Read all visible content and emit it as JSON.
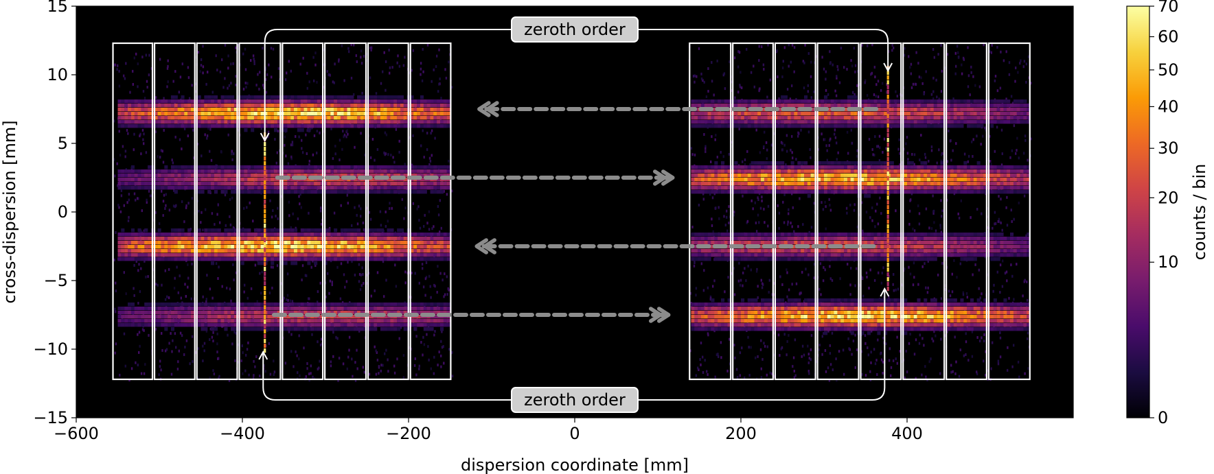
{
  "chart_data": {
    "type": "heatmap",
    "xlabel": "dispersion coordinate [mm]",
    "ylabel": "cross-dispersion [mm]",
    "xlim": [
      -600,
      600
    ],
    "ylim": [
      -15,
      15
    ],
    "xticks": [
      -600,
      -400,
      -200,
      0,
      200,
      400
    ],
    "yticks": [
      -15,
      -10,
      -5,
      0,
      5,
      10,
      15
    ],
    "xtick_labels": [
      "−600",
      "−400",
      "−200",
      "0",
      "200",
      "400"
    ],
    "ytick_labels": [
      "−15",
      "−10",
      "−5",
      "0",
      "5",
      "10",
      "15"
    ],
    "colorbar": {
      "label": "counts / bin",
      "range": [
        0,
        70
      ],
      "scale": "nonlinear",
      "ticks": [
        0,
        10,
        20,
        30,
        40,
        50,
        60,
        70
      ],
      "tick_labels": [
        "0",
        "10",
        "20",
        "30",
        "40",
        "50",
        "60",
        "70"
      ],
      "colormap": "inferno",
      "stops": [
        "#000004",
        "#1b0c41",
        "#4a0c6b",
        "#781c6d",
        "#a52c60",
        "#cf4446",
        "#ed6925",
        "#fb9b06",
        "#f7d13d",
        "#fcffa4"
      ]
    },
    "background_color": "#000000",
    "detector_arrays": [
      {
        "name": "left",
        "x_edges": [
          -557,
          -507,
          -456,
          -405,
          -353,
          -302,
          -250,
          -199,
          -148
        ],
        "y_range": [
          -12.2,
          12.3
        ]
      },
      {
        "name": "right",
        "x_edges": [
          137,
          189,
          240,
          291,
          343,
          394,
          446,
          497,
          549
        ],
        "y_range": [
          -12.2,
          12.3
        ]
      }
    ],
    "spectral_bands": [
      {
        "y": 7.2,
        "segments": [
          {
            "x": [
              -550,
              -150
            ],
            "peak_x": -340,
            "peak": 60
          },
          {
            "x": [
              140,
              548
            ],
            "peak_x": 300,
            "peak": 28
          }
        ]
      },
      {
        "y": 2.4,
        "segments": [
          {
            "x": [
              -550,
              -150
            ],
            "peak_x": -300,
            "peak": 22
          },
          {
            "x": [
              140,
              548
            ],
            "peak_x": 320,
            "peak": 55
          }
        ]
      },
      {
        "y": -2.5,
        "segments": [
          {
            "x": [
              -550,
              -150
            ],
            "peak_x": -360,
            "peak": 62
          },
          {
            "x": [
              140,
              548
            ],
            "peak_x": 300,
            "peak": 25
          }
        ]
      },
      {
        "y": -7.6,
        "segments": [
          {
            "x": [
              -550,
              -150
            ],
            "peak_x": -310,
            "peak": 20
          },
          {
            "x": [
              140,
              548
            ],
            "peak_x": 340,
            "peak": 60
          }
        ]
      }
    ],
    "zeroth_order_lines": [
      {
        "x": -373,
        "y": [
          -10.3,
          5.5
        ]
      },
      {
        "x": 377,
        "y": [
          -5.8,
          10.3
        ]
      }
    ],
    "annotations": [
      {
        "text": "zeroth order",
        "position": "top",
        "x": 0,
        "y": 13.3,
        "arrows_to": [
          [
            -373,
            5.2
          ],
          [
            377,
            10.3
          ]
        ]
      },
      {
        "text": "zeroth order",
        "position": "bottom",
        "x": 0,
        "y": -13.7,
        "arrows_to": [
          [
            -375,
            -10.2
          ],
          [
            373,
            -5.6
          ]
        ]
      }
    ],
    "dashed_arrows": [
      {
        "from": [
          363,
          7.5
        ],
        "to": [
          -115,
          7.5
        ]
      },
      {
        "from": [
          -358,
          2.5
        ],
        "to": [
          118,
          2.5
        ]
      },
      {
        "from": [
          360,
          -2.5
        ],
        "to": [
          -118,
          -2.5
        ]
      },
      {
        "from": [
          -362,
          -7.5
        ],
        "to": [
          113,
          -7.5
        ]
      }
    ]
  }
}
